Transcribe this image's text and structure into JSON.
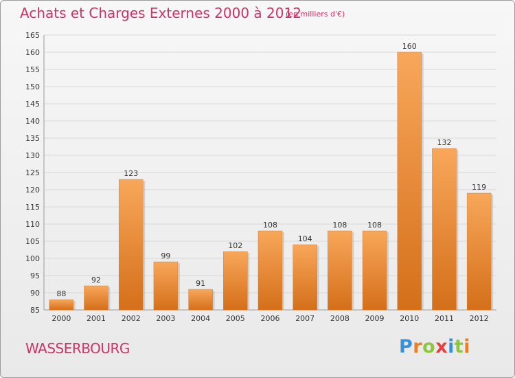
{
  "chart_data": {
    "type": "bar",
    "title": "Achats et Charges Externes 2000 à 2012",
    "unit_note": "(en milliers d'€)",
    "categories": [
      "2000",
      "2001",
      "2002",
      "2003",
      "2004",
      "2005",
      "2006",
      "2007",
      "2008",
      "2009",
      "2010",
      "2011",
      "2012"
    ],
    "series": [
      {
        "values": [
          88,
          92,
          123,
          99,
          91,
          102,
          108,
          104,
          108,
          108,
          160,
          132,
          119
        ]
      }
    ],
    "ylim": [
      85,
      165
    ],
    "yticks": [
      85,
      90,
      95,
      100,
      105,
      110,
      115,
      120,
      125,
      130,
      135,
      140,
      145,
      150,
      155,
      160,
      165
    ],
    "grid": true,
    "bar_color": "#f0913a"
  },
  "footer": {
    "commune": "WASSERBOURG",
    "logo_letters": [
      "P",
      "r",
      "o",
      "x",
      "i",
      "t",
      "i"
    ],
    "logo_colors": [
      "#3b8fd6",
      "#f07d1f",
      "#8cc63f",
      "#e8403c",
      "#3b8fd6",
      "#8cc63f",
      "#f07d1f"
    ]
  }
}
